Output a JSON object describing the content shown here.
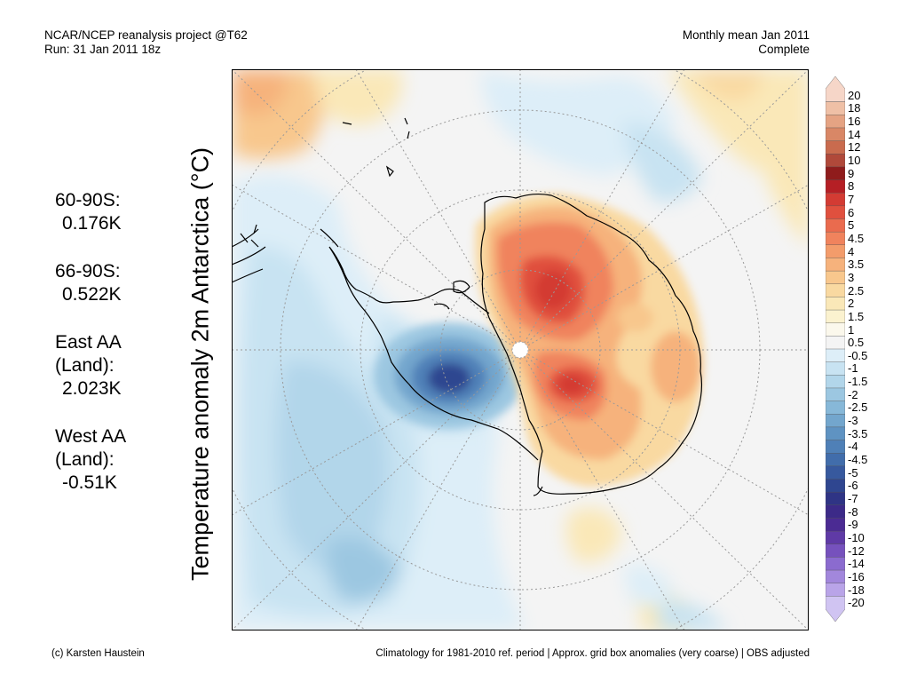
{
  "header": {
    "line1_left": "NCAR/NCEP reanalysis project @T62",
    "line2_left": "Run: 31 Jan 2011 18z",
    "line1_right": "Monthly mean Jan 2011",
    "line2_right": "Complete"
  },
  "title_vertical": "Temperature anomaly 2m Antarctica (°C)",
  "stats": [
    {
      "label": "60-90S:",
      "value": "0.176K"
    },
    {
      "label": "66-90S:",
      "value": "0.522K"
    },
    {
      "label": "East AA (Land):",
      "value": "2.023K"
    },
    {
      "label": "West AA (Land):",
      "value": "-0.51K"
    }
  ],
  "colorbar": {
    "labels": [
      "20",
      "18",
      "16",
      "14",
      "12",
      "10",
      "9",
      "8",
      "7",
      "6",
      "5",
      "4.5",
      "4",
      "3.5",
      "3",
      "2.5",
      "2",
      "1.5",
      "1",
      "0.5",
      "-0.5",
      "-1",
      "-1.5",
      "-2",
      "-2.5",
      "-3",
      "-3.5",
      "-4",
      "-4.5",
      "-5",
      "-6",
      "-7",
      "-8",
      "-9",
      "-10",
      "-12",
      "-14",
      "-16",
      "-18",
      "-20"
    ],
    "colors": [
      "#f6d6c8",
      "#efc0a6",
      "#e5a383",
      "#d98766",
      "#c96b4e",
      "#b0493a",
      "#8f1c1c",
      "#b51f25",
      "#d33b33",
      "#e0503e",
      "#ea6b4e",
      "#f0835d",
      "#f39c6b",
      "#f6b27c",
      "#f8c78d",
      "#f9d9a1",
      "#fae8b8",
      "#fbf2cf",
      "#fbf8ec",
      "#f4f4f4",
      "#ddeef8",
      "#c8e3f2",
      "#b2d6ea",
      "#9cc7e1",
      "#87b8d8",
      "#73a6cd",
      "#5f93c2",
      "#4f80b7",
      "#416dab",
      "#37599e",
      "#2f4690",
      "#2f3485",
      "#3c2a88",
      "#4b2b93",
      "#5f3aa6",
      "#7651bd",
      "#8b6bcf",
      "#a287dc",
      "#b9a4e8",
      "#d0c4f2"
    ]
  },
  "map": {
    "regions": [
      "East Antarctica warm anomaly",
      "West Antarctica cold anomaly",
      "Southern Ocean"
    ]
  },
  "footer": {
    "left": "(c) Karsten Haustein",
    "right": "Climatology for 1981-2010 ref. period | Approx. grid box anomalies (very coarse) | OBS adjusted"
  }
}
